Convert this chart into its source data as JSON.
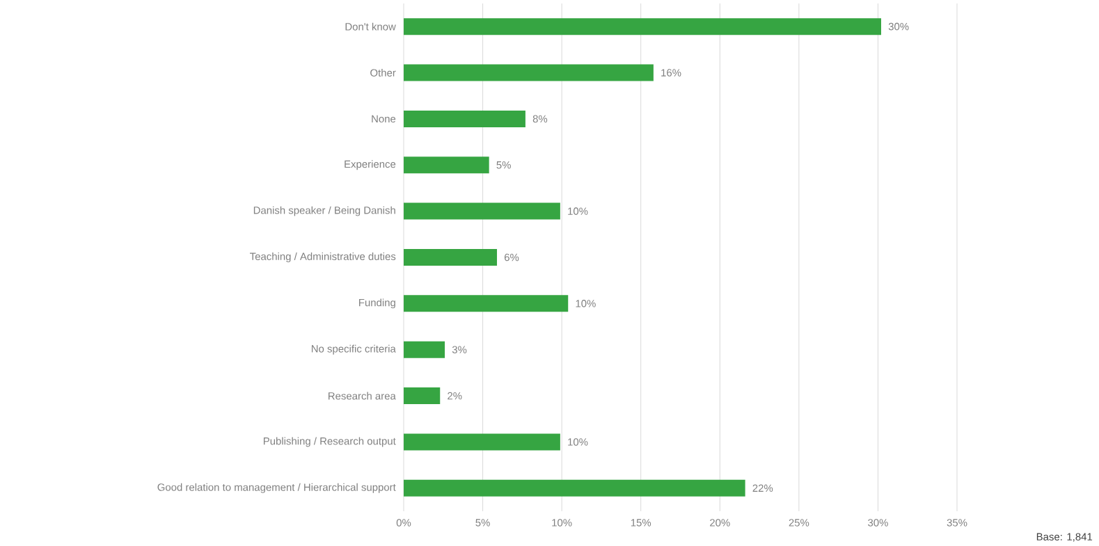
{
  "chart_data": {
    "type": "bar",
    "orientation": "horizontal",
    "categories": [
      "Don't know",
      "Other",
      "None",
      "Experience",
      "Danish speaker / Being Danish",
      "Teaching / Administrative duties",
      "Funding",
      "No specific criteria",
      "Research area",
      "Publishing / Research output",
      "Good relation to management / Hierarchical support"
    ],
    "values": [
      30.2,
      15.8,
      7.7,
      5.4,
      9.9,
      5.9,
      10.4,
      2.6,
      2.3,
      9.9,
      21.6
    ],
    "value_labels": [
      "30%",
      "16%",
      "8%",
      "5%",
      "10%",
      "6%",
      "10%",
      "3%",
      "2%",
      "10%",
      "22%"
    ],
    "color": "#36a542",
    "xlim": [
      0,
      35
    ],
    "xticks": [
      {
        "value": 0,
        "label": "0%"
      },
      {
        "value": 5,
        "label": "5%"
      },
      {
        "value": 10,
        "label": "10%"
      },
      {
        "value": 15,
        "label": "15%"
      },
      {
        "value": 20,
        "label": "20%"
      },
      {
        "value": 25,
        "label": "25%"
      },
      {
        "value": 30,
        "label": "30%"
      },
      {
        "value": 35,
        "label": "35%"
      }
    ],
    "grid": "x",
    "annotations": [
      "Base: 1,841"
    ]
  }
}
